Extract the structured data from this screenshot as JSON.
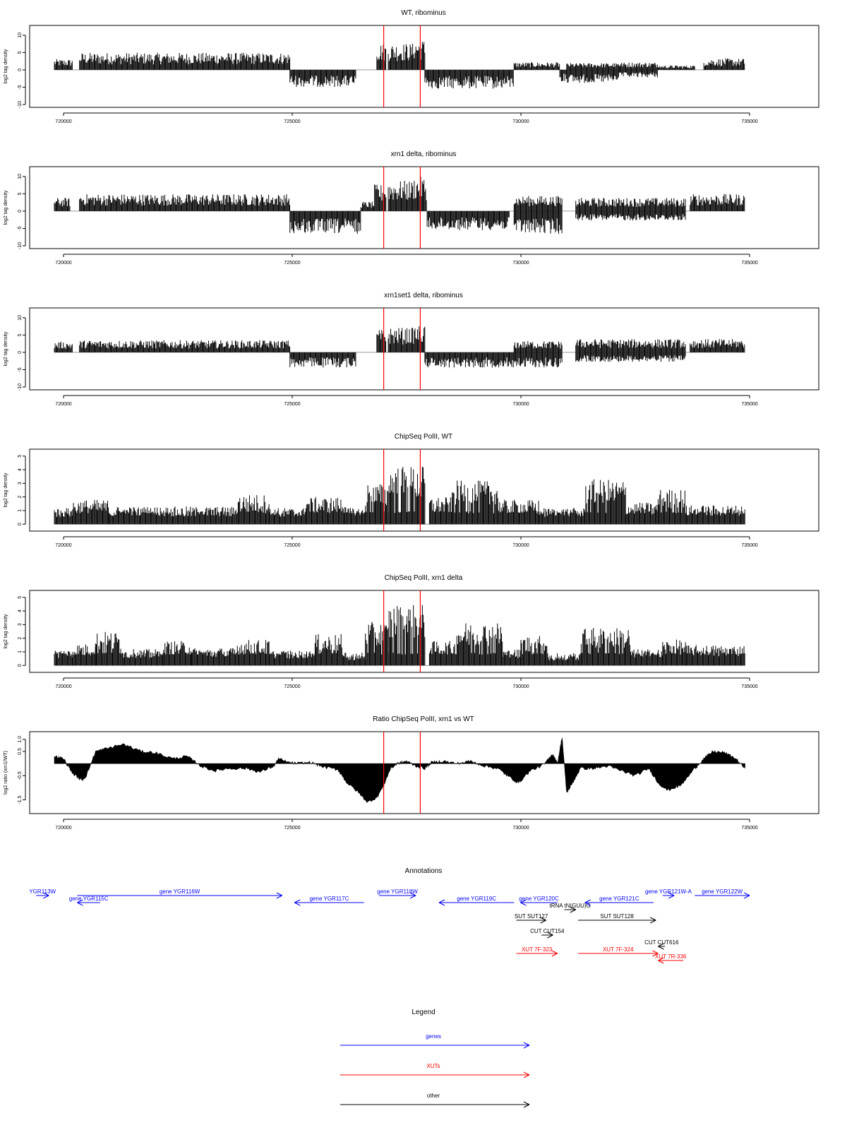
{
  "colors": {
    "gene": "#0000ff",
    "xut": "#ff0000",
    "other": "#000000",
    "marker": "#ff0000",
    "bars": "#000000",
    "zero_line": "#9a9a9a"
  },
  "x_axis": {
    "ticks": [
      720000,
      725000,
      730000,
      735000
    ],
    "tick_labels": [
      "720000",
      "725000",
      "730000",
      "735000"
    ]
  },
  "markers": [
    727000,
    727800
  ],
  "chart_data": [
    {
      "type": "bar",
      "title": "WT, ribominus",
      "ylabel": "log2 tag density",
      "ylim": [
        -10,
        12
      ],
      "yticks": [
        10,
        5,
        0,
        -5,
        -10
      ],
      "ytick_labels": [
        "10",
        "5",
        "0",
        "-5",
        "-10"
      ],
      "xlim": [
        719400,
        735600
      ],
      "grid": false,
      "segments": [
        {
          "x0": 719800,
          "x1": 720200,
          "y": 2.8
        },
        {
          "x0": 720350,
          "x1": 724950,
          "y": 4.5
        },
        {
          "x0": 724950,
          "x1": 726400,
          "y": -4.5
        },
        {
          "x0": 726850,
          "x1": 727050,
          "y": 7
        },
        {
          "x0": 727100,
          "x1": 727650,
          "y": 7
        },
        {
          "x0": 727650,
          "x1": 727900,
          "y": 8
        },
        {
          "x0": 727900,
          "x1": 729850,
          "y": -5
        },
        {
          "x0": 729850,
          "x1": 730850,
          "y": 2
        },
        {
          "x0": 730850,
          "x1": 731000,
          "y": -3
        },
        {
          "x0": 731000,
          "x1": 732150,
          "y": 1.8
        },
        {
          "x0": 731000,
          "x1": 732150,
          "y": -3.5
        },
        {
          "x0": 732150,
          "x1": 733000,
          "y": 2
        },
        {
          "x0": 732150,
          "x1": 733000,
          "y": -2
        },
        {
          "x0": 733000,
          "x1": 733800,
          "y": 1.2
        },
        {
          "x0": 734000,
          "x1": 734900,
          "y": 3
        }
      ]
    },
    {
      "type": "bar",
      "title": "xrn1 delta, ribominus",
      "ylabel": "log2 tag density",
      "ylim": [
        -10,
        12
      ],
      "yticks": [
        10,
        5,
        0,
        -5,
        -10
      ],
      "ytick_labels": [
        "10",
        "5",
        "0",
        "-5",
        "-10"
      ],
      "xlim": [
        719400,
        735600
      ],
      "grid": false,
      "segments": [
        {
          "x0": 719800,
          "x1": 720150,
          "y": 3.5
        },
        {
          "x0": 720350,
          "x1": 724950,
          "y": 4.5
        },
        {
          "x0": 724950,
          "x1": 726500,
          "y": -6
        },
        {
          "x0": 726500,
          "x1": 726800,
          "y": 2.5
        },
        {
          "x0": 726800,
          "x1": 727050,
          "y": 7
        },
        {
          "x0": 727100,
          "x1": 727650,
          "y": 8
        },
        {
          "x0": 727650,
          "x1": 727950,
          "y": 9
        },
        {
          "x0": 727950,
          "x1": 729750,
          "y": -5
        },
        {
          "x0": 729850,
          "x1": 730900,
          "y": 4
        },
        {
          "x0": 729850,
          "x1": 730900,
          "y": -6
        },
        {
          "x0": 731200,
          "x1": 733600,
          "y": 3.5
        },
        {
          "x0": 731200,
          "x1": 733600,
          "y": -2.5
        },
        {
          "x0": 733700,
          "x1": 734900,
          "y": 4.5
        }
      ]
    },
    {
      "type": "bar",
      "title": "xrn1set1 delta, ribominus",
      "ylabel": "log2 tag density",
      "ylim": [
        -10,
        12
      ],
      "yticks": [
        10,
        5,
        0,
        -5,
        -10
      ],
      "ytick_labels": [
        "10",
        "5",
        "0",
        "-5",
        "-10"
      ],
      "xlim": [
        719400,
        735600
      ],
      "grid": false,
      "segments": [
        {
          "x0": 719800,
          "x1": 720200,
          "y": 2.8
        },
        {
          "x0": 720350,
          "x1": 724950,
          "y": 3.2
        },
        {
          "x0": 724950,
          "x1": 726400,
          "y": -4
        },
        {
          "x0": 726850,
          "x1": 727050,
          "y": 6
        },
        {
          "x0": 727100,
          "x1": 727650,
          "y": 6.5
        },
        {
          "x0": 727650,
          "x1": 727900,
          "y": 7
        },
        {
          "x0": 727900,
          "x1": 729850,
          "y": -4
        },
        {
          "x0": 729850,
          "x1": 730900,
          "y": 3
        },
        {
          "x0": 729850,
          "x1": 730900,
          "y": -4
        },
        {
          "x0": 731200,
          "x1": 733600,
          "y": 3.5
        },
        {
          "x0": 731200,
          "x1": 733600,
          "y": -2.5
        },
        {
          "x0": 733700,
          "x1": 734900,
          "y": 3.5
        }
      ]
    },
    {
      "type": "bar",
      "title": "ChipSeq PolII, WT",
      "ylabel": "log2 tag density",
      "ylim": [
        -0.3,
        5.3
      ],
      "yticks": [
        0,
        1,
        2,
        3,
        4,
        5
      ],
      "ytick_labels": [
        "0",
        "1",
        "2",
        "3",
        "4",
        "5"
      ],
      "xlim": [
        719400,
        735600
      ],
      "grid": false,
      "segments": [
        {
          "x0": 719800,
          "x1": 720200,
          "y": 1.2
        },
        {
          "x0": 720200,
          "x1": 721000,
          "y": 1.8
        },
        {
          "x0": 721000,
          "x1": 723800,
          "y": 1.3
        },
        {
          "x0": 723800,
          "x1": 724500,
          "y": 2.2
        },
        {
          "x0": 724500,
          "x1": 725300,
          "y": 1.2
        },
        {
          "x0": 725300,
          "x1": 726200,
          "y": 2
        },
        {
          "x0": 726200,
          "x1": 726600,
          "y": 1.2
        },
        {
          "x0": 726600,
          "x1": 727100,
          "y": 3
        },
        {
          "x0": 727100,
          "x1": 727900,
          "y": 4.3
        },
        {
          "x0": 728000,
          "x1": 728500,
          "y": 2
        },
        {
          "x0": 728500,
          "x1": 729500,
          "y": 3.2
        },
        {
          "x0": 729500,
          "x1": 730400,
          "y": 1.8
        },
        {
          "x0": 730400,
          "x1": 731000,
          "y": 1.2
        },
        {
          "x0": 731000,
          "x1": 731400,
          "y": 1.2
        },
        {
          "x0": 731400,
          "x1": 732300,
          "y": 3.3
        },
        {
          "x0": 732300,
          "x1": 733000,
          "y": 1.6
        },
        {
          "x0": 733000,
          "x1": 733600,
          "y": 2.6
        },
        {
          "x0": 733600,
          "x1": 734900,
          "y": 1.4
        }
      ]
    },
    {
      "type": "bar",
      "title": "ChipSeq PolII, xrn1 delta",
      "ylabel": "log2 tag density",
      "ylim": [
        -0.3,
        5.3
      ],
      "yticks": [
        0,
        1,
        2,
        3,
        4,
        5
      ],
      "ytick_labels": [
        "0",
        "1",
        "2",
        "3",
        "4",
        "5"
      ],
      "xlim": [
        719400,
        735600
      ],
      "grid": false,
      "segments": [
        {
          "x0": 719800,
          "x1": 720200,
          "y": 1.2
        },
        {
          "x0": 720200,
          "x1": 720700,
          "y": 1.6
        },
        {
          "x0": 720700,
          "x1": 721300,
          "y": 2.5
        },
        {
          "x0": 721300,
          "x1": 722200,
          "y": 1.2
        },
        {
          "x0": 722200,
          "x1": 722800,
          "y": 1.8
        },
        {
          "x0": 722800,
          "x1": 723800,
          "y": 1.3
        },
        {
          "x0": 723800,
          "x1": 724500,
          "y": 1.9
        },
        {
          "x0": 724500,
          "x1": 725500,
          "y": 1.1
        },
        {
          "x0": 725500,
          "x1": 726100,
          "y": 2.3
        },
        {
          "x0": 726100,
          "x1": 726600,
          "y": 0.8
        },
        {
          "x0": 726600,
          "x1": 727100,
          "y": 3.2
        },
        {
          "x0": 727100,
          "x1": 727900,
          "y": 4.5
        },
        {
          "x0": 728000,
          "x1": 728600,
          "y": 1.8
        },
        {
          "x0": 728600,
          "x1": 729600,
          "y": 3.2
        },
        {
          "x0": 729600,
          "x1": 730000,
          "y": 1.2
        },
        {
          "x0": 730000,
          "x1": 730600,
          "y": 2.2
        },
        {
          "x0": 730600,
          "x1": 731300,
          "y": 0.8
        },
        {
          "x0": 731300,
          "x1": 732400,
          "y": 2.8
        },
        {
          "x0": 732400,
          "x1": 733100,
          "y": 1.2
        },
        {
          "x0": 733100,
          "x1": 733600,
          "y": 1.9
        },
        {
          "x0": 733600,
          "x1": 734900,
          "y": 1.5
        }
      ]
    },
    {
      "type": "area",
      "title": "Ratio ChipSeq PolII, xrn1 vs WT",
      "ylabel": "log2 ratio (xrn1/WT)",
      "ylim": [
        -1.95,
        1.2
      ],
      "yticks": [
        1.0,
        0.5,
        -0.5,
        -1.5
      ],
      "ytick_labels": [
        "1.0",
        "0.5",
        "-0.5",
        "-1.5"
      ],
      "xlim": [
        719400,
        735600
      ],
      "grid": false,
      "baseline": 0,
      "points": [
        [
          719800,
          0.3
        ],
        [
          720000,
          0.2
        ],
        [
          720200,
          -0.4
        ],
        [
          720400,
          -0.7
        ],
        [
          720500,
          -0.5
        ],
        [
          720700,
          0.5
        ],
        [
          720900,
          0.6
        ],
        [
          721300,
          0.8
        ],
        [
          721700,
          0.5
        ],
        [
          722000,
          0.45
        ],
        [
          722400,
          0.2
        ],
        [
          722700,
          0.3
        ],
        [
          723000,
          -0.1
        ],
        [
          723300,
          -0.3
        ],
        [
          723600,
          -0.2
        ],
        [
          724000,
          -0.2
        ],
        [
          724300,
          -0.35
        ],
        [
          724600,
          -0.1
        ],
        [
          724700,
          0.2
        ],
        [
          724900,
          0.05
        ],
        [
          725100,
          0.0
        ],
        [
          725400,
          0.05
        ],
        [
          725700,
          -0.15
        ],
        [
          726000,
          -0.25
        ],
        [
          726200,
          -0.8
        ],
        [
          726450,
          -1.2
        ],
        [
          726650,
          -1.6
        ],
        [
          726850,
          -1.4
        ],
        [
          727000,
          -0.9
        ],
        [
          727150,
          -0.2
        ],
        [
          727300,
          0.0
        ],
        [
          727500,
          0.1
        ],
        [
          727700,
          -0.1
        ],
        [
          727900,
          -0.2
        ],
        [
          728050,
          0.05
        ],
        [
          728300,
          0.1
        ],
        [
          728600,
          0.0
        ],
        [
          728900,
          0.1
        ],
        [
          729200,
          -0.1
        ],
        [
          729500,
          -0.2
        ],
        [
          729700,
          -0.5
        ],
        [
          729950,
          -0.8
        ],
        [
          730200,
          -0.3
        ],
        [
          730500,
          -0.05
        ],
        [
          730700,
          0.4
        ],
        [
          730800,
          0.0
        ],
        [
          730900,
          1.1
        ],
        [
          731000,
          -1.2
        ],
        [
          731100,
          -0.9
        ],
        [
          731300,
          -0.2
        ],
        [
          731600,
          -0.2
        ],
        [
          731900,
          -0.1
        ],
        [
          732200,
          -0.3
        ],
        [
          732500,
          -0.5
        ],
        [
          732800,
          -0.2
        ],
        [
          733000,
          -0.8
        ],
        [
          733200,
          -1.1
        ],
        [
          733500,
          -0.9
        ],
        [
          733800,
          -0.2
        ],
        [
          734000,
          0.2
        ],
        [
          734200,
          0.5
        ],
        [
          734450,
          0.45
        ],
        [
          734700,
          0.2
        ],
        [
          734900,
          -0.2
        ]
      ]
    }
  ],
  "annotations": {
    "title": "Annotations",
    "items": [
      {
        "label": "YGR113W",
        "x0": 719400,
        "x1": 719680,
        "row": 0,
        "dir": "right",
        "kind": "gene"
      },
      {
        "label": "gene YGR115C",
        "x0": 720300,
        "x1": 720800,
        "row": 1,
        "dir": "left",
        "kind": "gene"
      },
      {
        "label": "gene YGR116W",
        "x0": 720300,
        "x1": 724780,
        "row": 0,
        "dir": "right",
        "kind": "gene"
      },
      {
        "label": "gene YGR117C",
        "x0": 725050,
        "x1": 726570,
        "row": 1,
        "dir": "left",
        "kind": "gene"
      },
      {
        "label": "gene YGR118W",
        "x0": 726900,
        "x1": 727700,
        "row": 0,
        "dir": "right",
        "kind": "gene"
      },
      {
        "label": "gene YGR119C",
        "x0": 728210,
        "x1": 729850,
        "row": 1,
        "dir": "left",
        "kind": "gene"
      },
      {
        "label": "gene YGR120C",
        "x0": 729990,
        "x1": 730800,
        "row": 1,
        "dir": "left",
        "kind": "gene"
      },
      {
        "label": "tRNA tN(GUU)G",
        "x0": 730950,
        "x1": 731200,
        "row": 2,
        "dir": "right",
        "kind": "other"
      },
      {
        "label": "gene YGR121C",
        "x0": 731400,
        "x1": 732900,
        "row": 1,
        "dir": "left",
        "kind": "gene"
      },
      {
        "label": "gene YGR121W-A",
        "x0": 733100,
        "x1": 733350,
        "row": 0,
        "dir": "right",
        "kind": "gene"
      },
      {
        "label": "gene YGR122W",
        "x0": 733800,
        "x1": 735000,
        "row": 0,
        "dir": "right",
        "kind": "gene"
      },
      {
        "label": "SUT SUT127",
        "x0": 729900,
        "x1": 730550,
        "row": 3,
        "dir": "right",
        "kind": "other"
      },
      {
        "label": "SUT SUT128",
        "x0": 731250,
        "x1": 732950,
        "row": 3,
        "dir": "right",
        "kind": "other"
      },
      {
        "label": "CUT CUT154",
        "x0": 730450,
        "x1": 730700,
        "row": 4,
        "dir": "right",
        "kind": "other"
      },
      {
        "label": "CUT CUT616",
        "x0": 733000,
        "x1": 733150,
        "row": 5,
        "dir": "left",
        "kind": "other"
      },
      {
        "label": "XUT 7F-323",
        "x0": 729900,
        "x1": 730800,
        "row": 6,
        "dir": "right",
        "kind": "xut"
      },
      {
        "label": "XUT 7F-324",
        "x0": 731250,
        "x1": 733000,
        "row": 6,
        "dir": "right",
        "kind": "xut"
      },
      {
        "label": "XUT 7R-336",
        "x0": 733000,
        "x1": 733550,
        "row": 7,
        "dir": "left",
        "kind": "xut"
      }
    ]
  },
  "legend": {
    "title": "Legend",
    "items": [
      {
        "label": "genes",
        "kind": "gene"
      },
      {
        "label": "XUTs",
        "kind": "xut"
      },
      {
        "label": "other",
        "kind": "other"
      }
    ]
  }
}
